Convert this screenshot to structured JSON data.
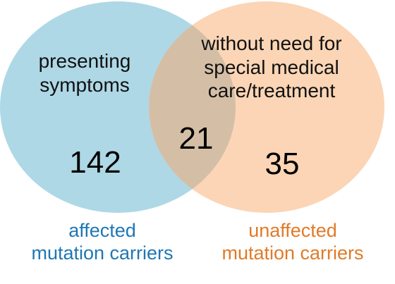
{
  "diagram": {
    "left_set": {
      "description": "presenting\nsymptoms",
      "count": "142",
      "caption": "affected\nmutation carriers",
      "fill": "#aed8e6",
      "caption_color": "#1f77b4"
    },
    "right_set": {
      "description": "without need for\nspecial medical\ncare/treatment",
      "count": "35",
      "caption": "unaffected\nmutation carriers",
      "fill": "#fbd5b5",
      "caption_color": "#e07b28"
    },
    "overlap": {
      "count": "21",
      "fill": "#d4bfa6"
    }
  }
}
